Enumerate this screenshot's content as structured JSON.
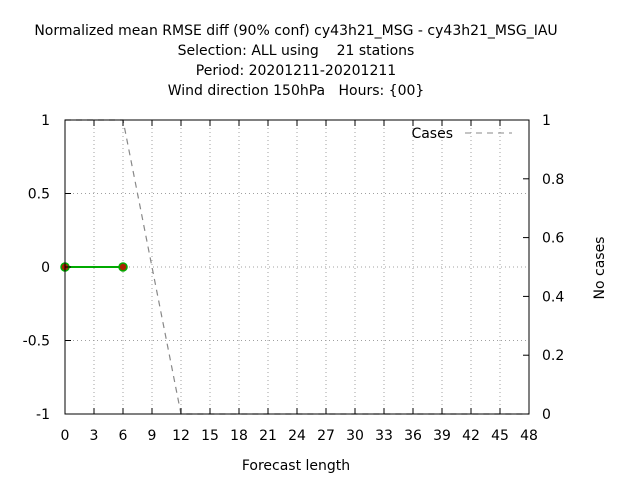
{
  "chart_data": {
    "type": "line",
    "title_lines": [
      "Normalized mean RMSE diff (90% conf) cy43h21_MSG - cy43h21_MSG_IAU",
      "Selection: ALL using    21 stations",
      "Period: 20201211-20201211",
      "Wind direction 150hPa   Hours: {00}"
    ],
    "xlabel": "Forecast length",
    "ylabel": "",
    "y2label": "No cases",
    "xlim": [
      0,
      48
    ],
    "ylim": [
      -1,
      1
    ],
    "y2lim": [
      0,
      1
    ],
    "xticks": [
      0,
      3,
      6,
      9,
      12,
      15,
      18,
      21,
      24,
      27,
      30,
      33,
      36,
      39,
      42,
      45,
      48
    ],
    "yticks": [
      -1,
      -0.5,
      0,
      0.5,
      1
    ],
    "ytick_labels": [
      "-1",
      "-0.5",
      "0",
      "0.5",
      "1"
    ],
    "y2ticks": [
      0,
      0.2,
      0.4,
      0.6,
      0.8,
      1
    ],
    "y2tick_labels": [
      "0",
      "0.2",
      "0.4",
      "0.6",
      "0.8",
      "1"
    ],
    "grid": true,
    "legend_position": "top-right",
    "series": [
      {
        "name": "",
        "axis": "left",
        "style": "solid",
        "color": "#00aa00",
        "marker_color": "#aa2200",
        "x": [
          0,
          6
        ],
        "y": [
          0,
          0
        ]
      },
      {
        "name": "Cases",
        "axis": "right",
        "style": "dashed",
        "color": "#888888",
        "x": [
          0,
          3,
          6,
          12,
          15,
          18,
          21,
          24,
          27,
          30,
          33,
          36,
          39,
          42,
          45,
          48
        ],
        "y": [
          1,
          1,
          1,
          0,
          0,
          0,
          0,
          0,
          0,
          0,
          0,
          0,
          0,
          0,
          0,
          0
        ]
      }
    ]
  }
}
